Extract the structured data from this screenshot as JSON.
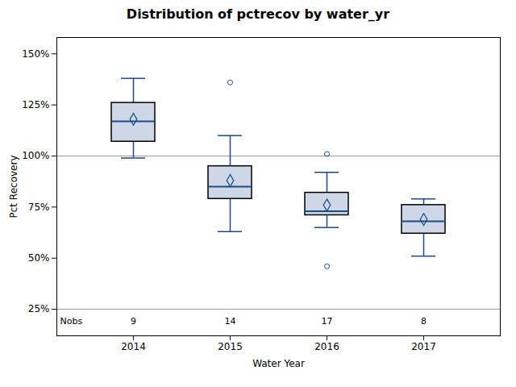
{
  "chart_data": {
    "type": "box",
    "title": "Distribution of pctrecov by water_yr",
    "xlabel": "Water Year",
    "ylabel": "Pct Recovery",
    "categories": [
      "2014",
      "2015",
      "2016",
      "2017"
    ],
    "whislo": [
      99,
      63,
      65,
      51
    ],
    "q1": [
      107,
      79,
      71,
      62
    ],
    "med": [
      117,
      85,
      73,
      68
    ],
    "q3": [
      126,
      95,
      82,
      76
    ],
    "whishi": [
      138,
      110,
      92,
      79
    ],
    "mean": [
      118,
      88,
      76,
      69
    ],
    "fliers": [
      [],
      [
        136
      ],
      [
        101,
        46
      ],
      []
    ],
    "nobs_label": "Nobs",
    "nobs": [
      9,
      14,
      17,
      8
    ],
    "nobs_y": 19,
    "reference_lines": [
      100,
      25
    ],
    "ylim": [
      12,
      158
    ],
    "yticks": [
      {
        "value": 25,
        "label": "25%"
      },
      {
        "value": 50,
        "label": "50%"
      },
      {
        "value": 75,
        "label": "75%"
      },
      {
        "value": 100,
        "label": "100%"
      },
      {
        "value": 125,
        "label": "125%"
      },
      {
        "value": 150,
        "label": "150%"
      }
    ],
    "color": "#1a4a8a",
    "grid": false
  }
}
